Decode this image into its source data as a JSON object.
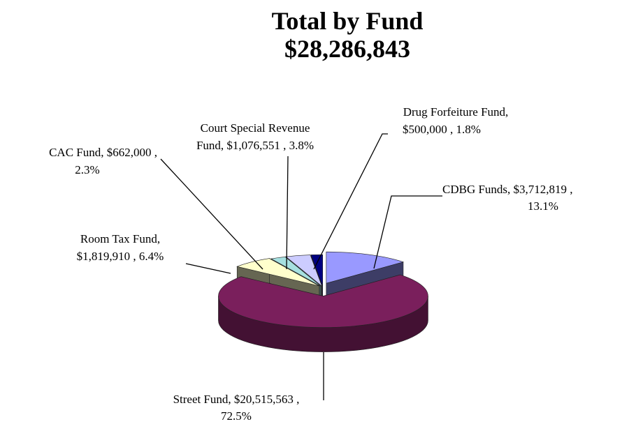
{
  "chart_data": {
    "type": "pie",
    "title": "Total by Fund",
    "subtitle": "$28,286,843",
    "values": [
      3712819,
      20515563,
      1819910,
      662000,
      1076551,
      500000
    ],
    "labels": [
      [
        "CDBG Funds,  $3,712,819 ,",
        "13.1%"
      ],
      [
        "Street Fund,  $20,515,563 ,",
        "72.5%"
      ],
      [
        "Room Tax Fund,",
        "$1,819,910 , 6.4%"
      ],
      [
        "CAC Fund,  $662,000 ,",
        "2.3%"
      ],
      [
        "Court Special Revenue",
        "Fund,  $1,076,551 , 3.8%"
      ],
      [
        "Drug Forfeiture Fund,",
        "$500,000 , 1.8%"
      ]
    ],
    "colors": [
      "#9999ff",
      "#7a1f5c",
      "#ffffcc",
      "#a6e0e0",
      "#ccccff",
      "#000080"
    ]
  }
}
